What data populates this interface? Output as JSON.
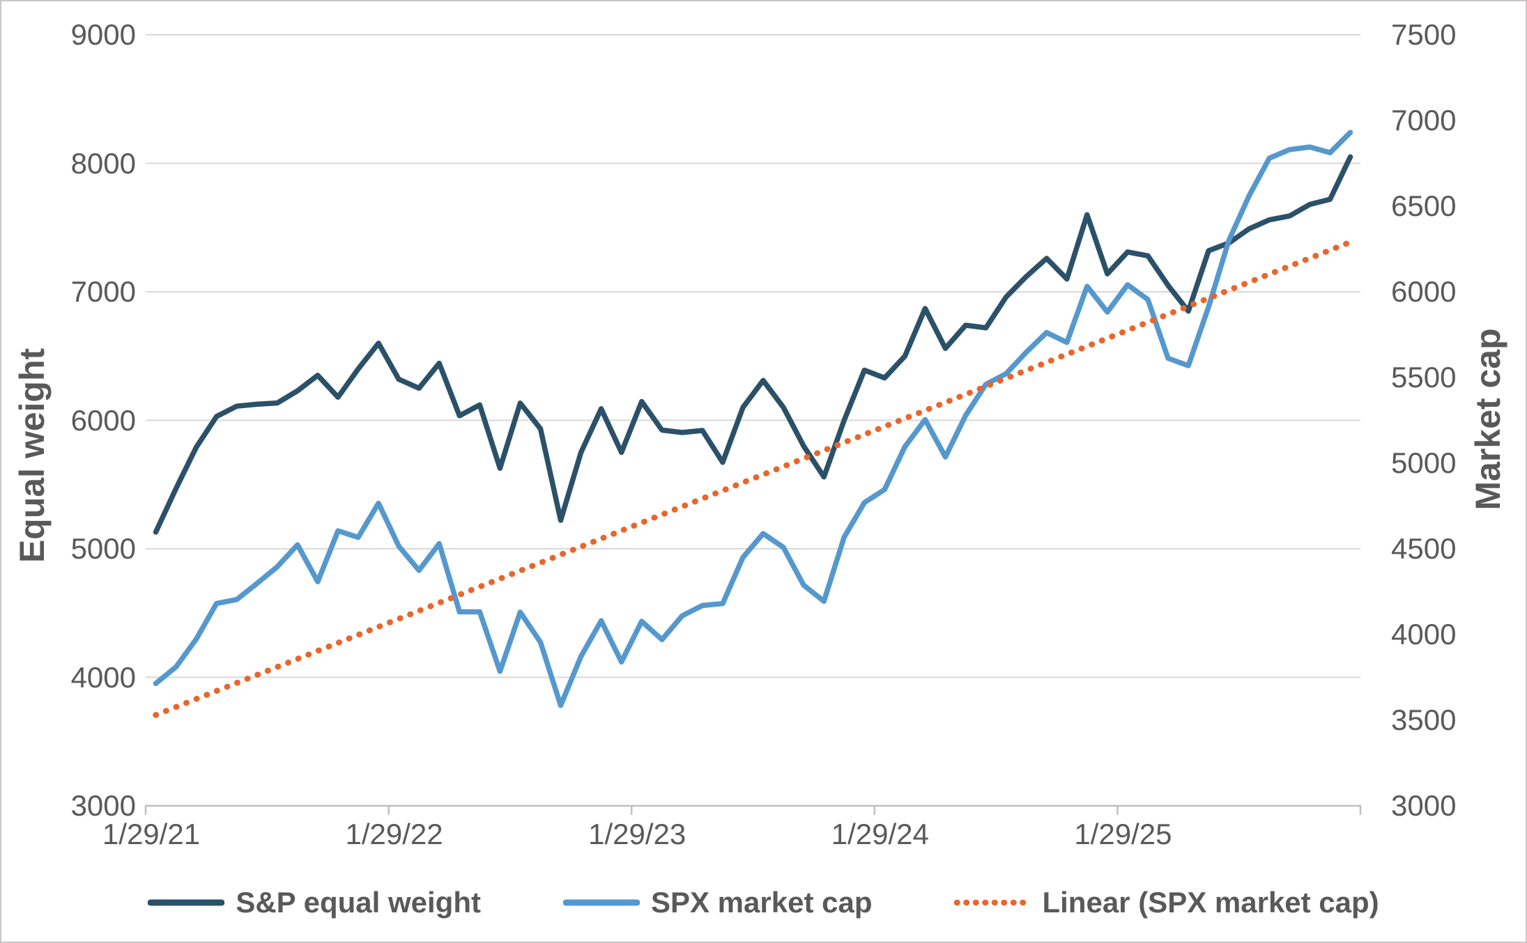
{
  "chart_data": {
    "type": "line",
    "title": "",
    "frequency": "monthly",
    "x_start_label": "1/29/21",
    "x_tick_labels": [
      "1/29/21",
      "1/29/22",
      "1/29/23",
      "1/29/24",
      "1/29/25"
    ],
    "left_axis": {
      "title": "Equal weight",
      "min": 3000,
      "max": 9000,
      "tick_step": 1000,
      "tick_labels": [
        "9000",
        "8000",
        "7000",
        "6000",
        "5000",
        "4000",
        "3000"
      ]
    },
    "right_axis": {
      "title": "Market cap",
      "min": 3000,
      "max": 7500,
      "tick_step": 500,
      "tick_labels": [
        "7500",
        "7000",
        "6500",
        "6000",
        "5500",
        "5000",
        "4500",
        "4000",
        "3500",
        "3000"
      ]
    },
    "grid": "on",
    "legend_position": "bottom",
    "series": [
      {
        "name": "S&P equal weight",
        "axis": "left",
        "style": "solid",
        "color": "#2B5169",
        "values": [
          5130,
          5470,
          5790,
          6030,
          6110,
          6125,
          6135,
          6230,
          6350,
          6180,
          6400,
          6600,
          6320,
          6250,
          6444,
          6036,
          6120,
          5627,
          6134,
          5934,
          5222,
          5750,
          6090,
          5750,
          6146,
          5924,
          5905,
          5921,
          5673,
          6100,
          6310,
          6100,
          5800,
          5560,
          6000,
          6390,
          6330,
          6500,
          6870,
          6560,
          6740,
          6720,
          6960,
          7120,
          7260,
          7100,
          7600,
          7140,
          7310,
          7280,
          7050,
          6850,
          7320,
          7380,
          7490,
          7560,
          7590,
          7680,
          7720,
          8050
        ]
      },
      {
        "name": "SPX market cap",
        "axis": "right",
        "style": "solid",
        "color": "#5598CE",
        "values": [
          3714,
          3811,
          3973,
          4181,
          4204,
          4298,
          4395,
          4523,
          4308,
          4605,
          4567,
          4766,
          4516,
          4374,
          4530,
          4132,
          4132,
          3785,
          4130,
          3955,
          3586,
          3872,
          4080,
          3840,
          4077,
          3970,
          4109,
          4169,
          4180,
          4450,
          4589,
          4508,
          4288,
          4194,
          4568,
          4770,
          4846,
          5096,
          5254,
          5036,
          5278,
          5460,
          5522,
          5648,
          5762,
          5705,
          6032,
          5882,
          6041,
          5955,
          5612,
          5569,
          5912,
          6300,
          6560,
          6780,
          6830,
          6845,
          6812,
          6930
        ]
      },
      {
        "name": "Linear (SPX market cap)",
        "axis": "right",
        "style": "dotted",
        "color": "#E8662C",
        "trend": {
          "start": 3530,
          "end": 6290
        }
      }
    ],
    "colors": {
      "gridline": "#D9D9D9",
      "axis_line": "#BFBFBF",
      "text": "#595959",
      "background": "#FFFFFF"
    }
  }
}
